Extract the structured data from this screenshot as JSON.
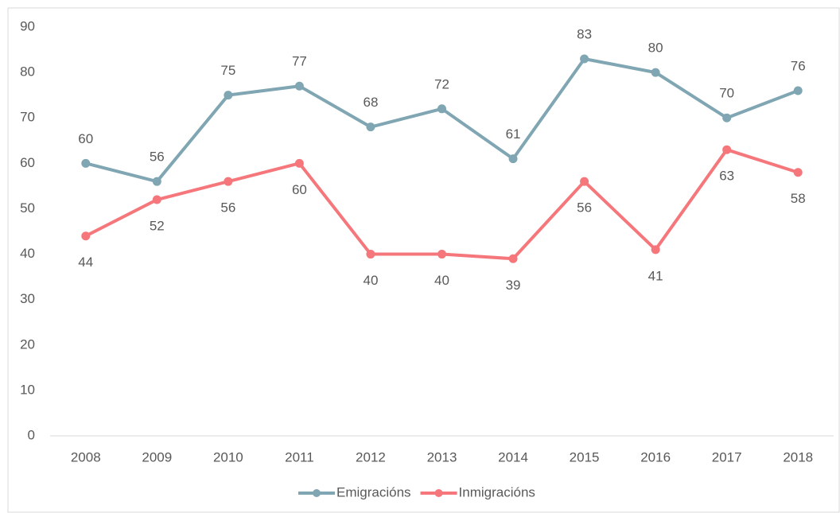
{
  "chart_data": {
    "type": "line",
    "categories": [
      "2008",
      "2009",
      "2010",
      "2011",
      "2012",
      "2013",
      "2014",
      "2015",
      "2016",
      "2017",
      "2018"
    ],
    "series": [
      {
        "name": "Emigracións",
        "color": "#7fa6b2",
        "values": [
          60,
          56,
          75,
          77,
          68,
          72,
          61,
          83,
          80,
          70,
          76
        ]
      },
      {
        "name": "Inmigracións",
        "color": "#f5777b",
        "values": [
          44,
          52,
          56,
          60,
          40,
          40,
          39,
          56,
          41,
          63,
          58
        ]
      }
    ],
    "ylim": [
      0,
      90
    ],
    "yticks": [
      0,
      10,
      20,
      30,
      40,
      50,
      60,
      70,
      80,
      90
    ],
    "grid": false,
    "legend": "bottom"
  }
}
